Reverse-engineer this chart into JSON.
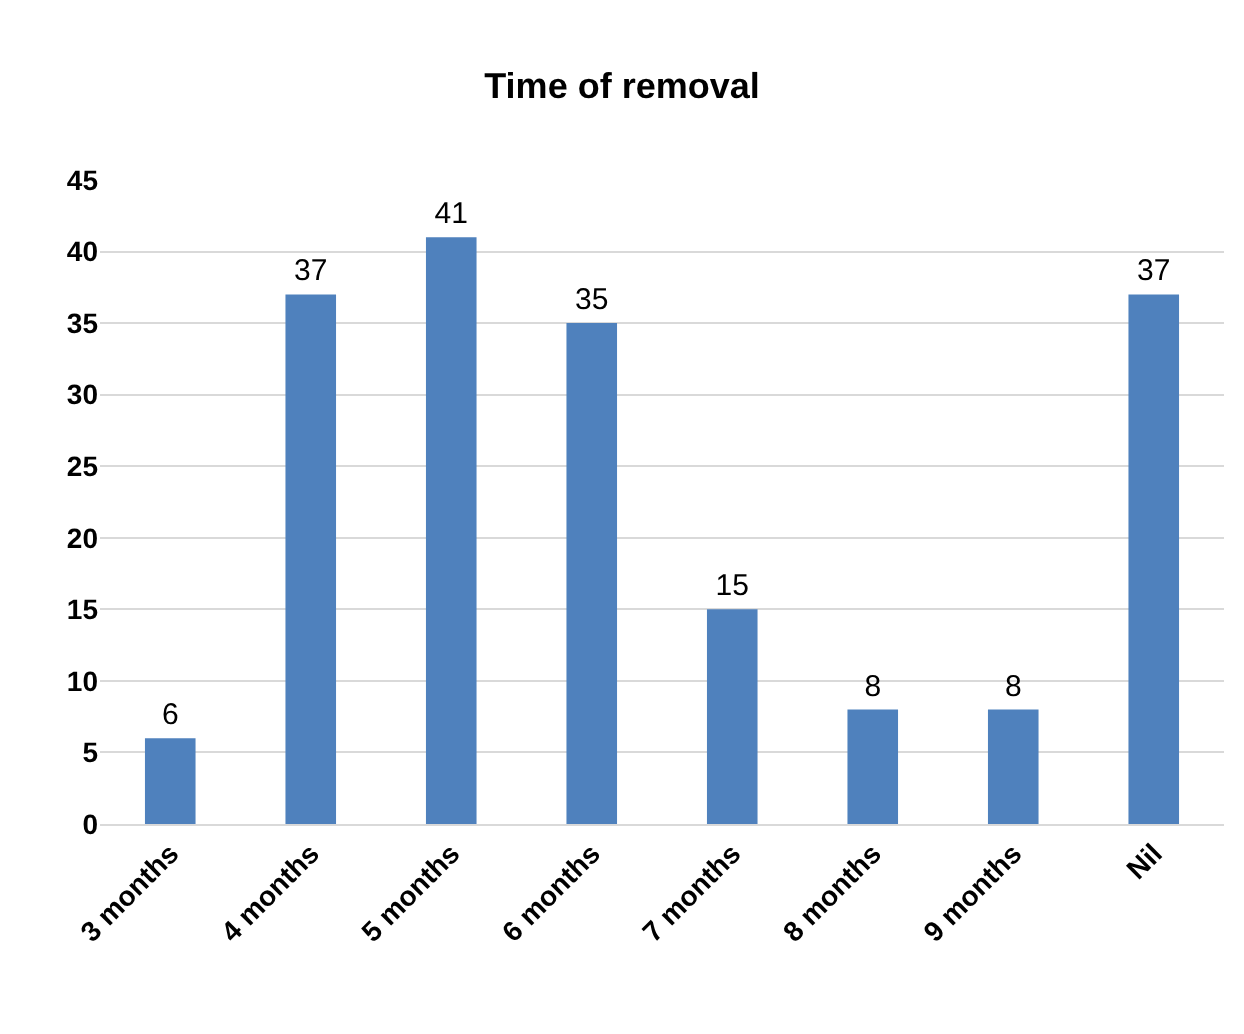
{
  "chart_data": {
    "type": "bar",
    "title": "Time of removal",
    "categories": [
      "3 months",
      "4 months",
      "5 months",
      "6 months",
      "7 months",
      "8 months",
      "9 months",
      "Nil"
    ],
    "values": [
      6,
      37,
      41,
      35,
      15,
      8,
      8,
      37
    ],
    "color": "#4f81bd",
    "ylim": [
      0,
      45
    ],
    "yticks": [
      0,
      5,
      10,
      15,
      20,
      25,
      30,
      35,
      40,
      45
    ],
    "grid": "y",
    "data_labels": true
  }
}
